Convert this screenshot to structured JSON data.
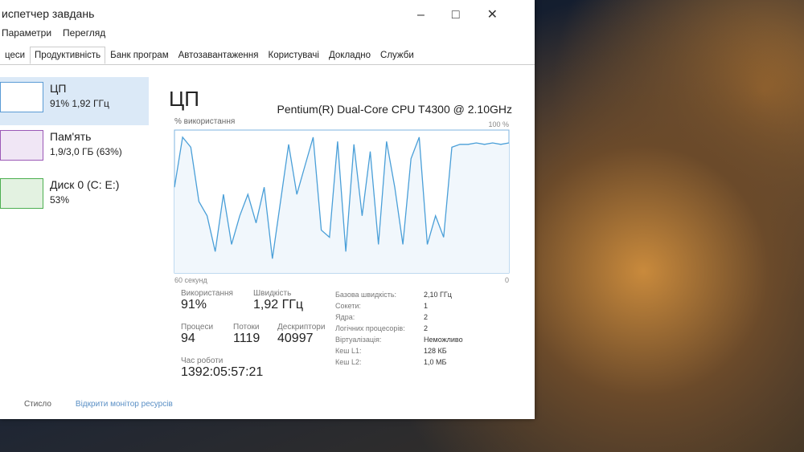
{
  "window": {
    "title": "испетчер завдань"
  },
  "menu": [
    "Параметри",
    "Перегляд"
  ],
  "tabs": [
    "цеси",
    "Продуктивність",
    "Банк програм",
    "Автозавантаження",
    "Користувачі",
    "Докладно",
    "Служби"
  ],
  "sidebar": [
    {
      "name": "ЦП",
      "detail": "91% 1,92 ГГц"
    },
    {
      "name": "Пам'ять",
      "detail": "1,9/3,0 ГБ (63%)"
    },
    {
      "name": "Диск 0 (C: E:)",
      "detail": "53%"
    }
  ],
  "panel": {
    "title": "ЦП",
    "cpu_name": "Pentium(R) Dual-Core CPU T4300 @ 2.10GHz"
  },
  "graph": {
    "ylabel": "% використання",
    "xlabel": "60 секунд",
    "ylim": [
      0,
      100
    ],
    "yticks": [
      {
        "value": 100,
        "label": "100 %"
      },
      0
    ],
    "values": [
      60,
      95,
      88,
      50,
      40,
      15,
      55,
      20,
      40,
      55,
      35,
      60,
      10,
      50,
      90,
      55,
      75,
      95,
      30,
      25,
      92,
      15,
      90,
      40,
      85,
      20,
      92,
      60,
      20,
      80,
      95,
      20,
      40,
      25,
      88,
      90,
      90,
      91,
      90,
      91,
      90,
      91
    ]
  },
  "stats": [
    {
      "label": "Використання",
      "value": "91%"
    },
    {
      "label": "Швидкість",
      "value": "1,92 ГГц"
    },
    {
      "label": "Процеси",
      "value": "94"
    },
    {
      "label": "Потоки",
      "value": "1119"
    },
    {
      "label": "Дескриптори",
      "value": "40997"
    },
    {
      "label": "Час роботи",
      "value": "1392:05:57:21"
    }
  ],
  "specs": [
    {
      "label": "Базова швидкість:",
      "value": "2,10 ГГц"
    },
    {
      "label": "Сокети:",
      "value": "1"
    },
    {
      "label": "Ядра:",
      "value": "2"
    },
    {
      "label": "Логічних процесорів:",
      "value": "2"
    },
    {
      "label": "Віртуалізація:",
      "value": "Неможливо"
    },
    {
      "label": "Кеш L1:",
      "value": "128 КБ"
    },
    {
      "label": "Кеш L2:",
      "value": "1,0 МБ"
    }
  ],
  "footer": {
    "collapse": "Стисло",
    "monitor": "Відкрити монітор ресурсів"
  }
}
